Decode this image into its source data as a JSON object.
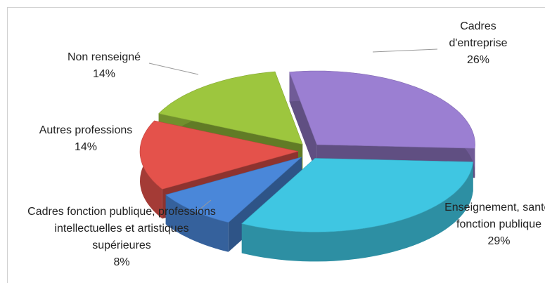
{
  "chart_data": {
    "type": "pie3d",
    "categories": [
      "Cadres d'entreprise",
      "Enseignement, santé, fonction publique",
      "Cadres fonction publique, professions intellectuelles et artistiques supérieures",
      "Autres professions",
      "Non renseigné"
    ],
    "values": [
      26,
      29,
      8,
      14,
      14
    ],
    "value_labels": [
      "26%",
      "29%",
      "8%",
      "14%",
      "14%"
    ],
    "colors": [
      "#9b7fd2",
      "#3fc6e2",
      "#4a87d9",
      "#e4524b",
      "#9dc63e"
    ]
  }
}
